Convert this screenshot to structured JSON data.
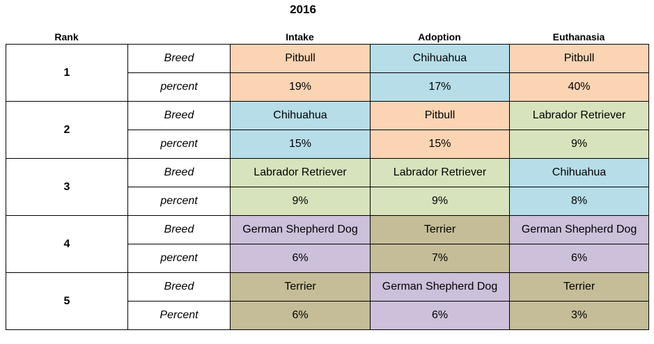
{
  "title": "2016",
  "headers": {
    "rank": "Rank",
    "intake": "Intake",
    "adoption": "Adoption",
    "euthanasia": "Euthanasia"
  },
  "colors": {
    "pitbull": "#fbd4b4",
    "chihuahua": "#b6dde8",
    "labrador": "#d7e3bc",
    "german_shepherd": "#ccc0da",
    "terrier": "#c4bd97"
  },
  "rows": [
    {
      "rank": "1",
      "breed_label": "Breed",
      "percent_label": "percent",
      "intake": {
        "breed": "Pitbull",
        "percent": "19%"
      },
      "adoption": {
        "breed": "Chihuahua",
        "percent": "17%"
      },
      "euthanasia": {
        "breed": "Pitbull",
        "percent": "40%"
      }
    },
    {
      "rank": "2",
      "breed_label": "Breed",
      "percent_label": "percent",
      "intake": {
        "breed": "Chihuahua",
        "percent": "15%"
      },
      "adoption": {
        "breed": "Pitbull",
        "percent": "15%"
      },
      "euthanasia": {
        "breed": "Labrador Retriever",
        "percent": "9%"
      }
    },
    {
      "rank": "3",
      "breed_label": "Breed",
      "percent_label": "percent",
      "intake": {
        "breed": "Labrador Retriever",
        "percent": "9%"
      },
      "adoption": {
        "breed": "Labrador Retriever",
        "percent": "9%"
      },
      "euthanasia": {
        "breed": "Chihuahua",
        "percent": "8%"
      }
    },
    {
      "rank": "4",
      "breed_label": "Breed",
      "percent_label": "percent",
      "intake": {
        "breed": "German Shepherd Dog",
        "percent": "6%"
      },
      "adoption": {
        "breed": "Terrier",
        "percent": "7%"
      },
      "euthanasia": {
        "breed": "German Shepherd Dog",
        "percent": "6%"
      }
    },
    {
      "rank": "5",
      "breed_label": "Breed",
      "percent_label": "Percent",
      "intake": {
        "breed": "Terrier",
        "percent": "6%"
      },
      "adoption": {
        "breed": "German Shepherd Dog",
        "percent": "6%"
      },
      "euthanasia": {
        "breed": "Terrier",
        "percent": "3%"
      }
    }
  ]
}
